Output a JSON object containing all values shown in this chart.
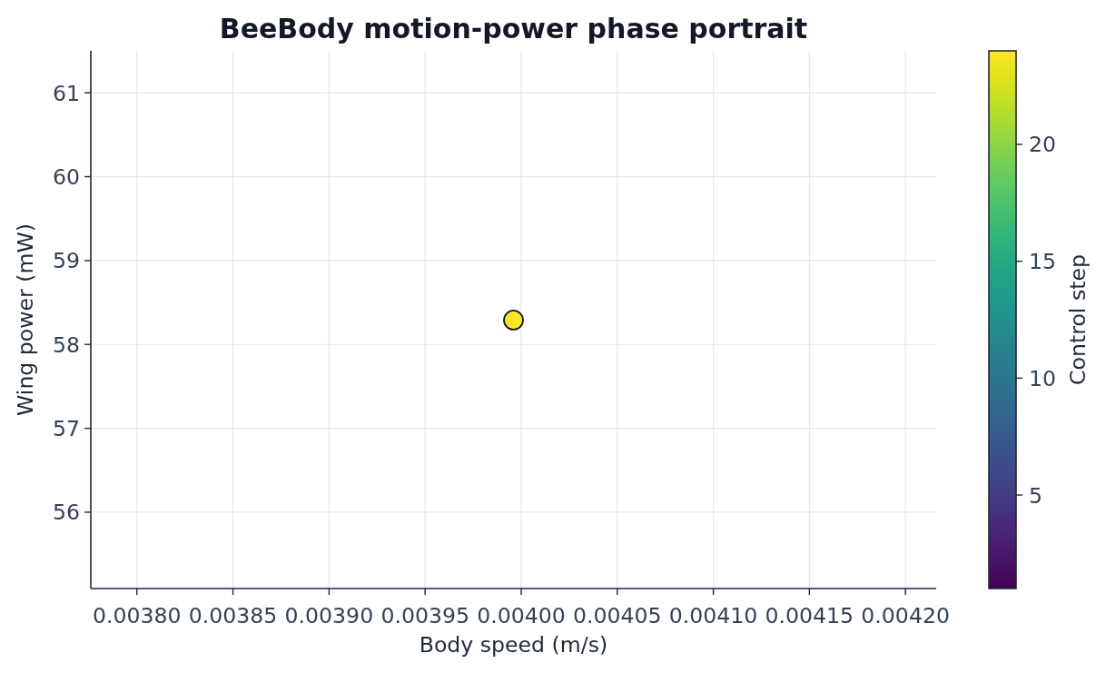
{
  "chart_data": {
    "type": "scatter",
    "title": "BeeBody motion-power phase portrait",
    "xlabel": "Body speed (m/s)",
    "ylabel": "Wing power (mW)",
    "clabel": "Control step",
    "x": [
      0.003996
    ],
    "values": [
      58.29
    ],
    "cvalues": [
      24
    ],
    "clim": [
      1,
      24
    ],
    "cticks": [
      5,
      10,
      15,
      20
    ],
    "xlim": [
      0.003776,
      0.004216
    ],
    "xticks": [
      {
        "value": 0.0038,
        "label": "0.00380"
      },
      {
        "value": 0.00385,
        "label": "0.00385"
      },
      {
        "value": 0.0039,
        "label": "0.00390"
      },
      {
        "value": 0.00395,
        "label": "0.00395"
      },
      {
        "value": 0.004,
        "label": "0.00400"
      },
      {
        "value": 0.00405,
        "label": "0.00405"
      },
      {
        "value": 0.0041,
        "label": "0.00410"
      },
      {
        "value": 0.00415,
        "label": "0.00415"
      },
      {
        "value": 0.0042,
        "label": "0.00420"
      }
    ],
    "ylim": [
      55.09,
      61.5
    ],
    "yticks": [
      56,
      57,
      58,
      59,
      60,
      61
    ],
    "grid": true,
    "marker": "circle"
  }
}
